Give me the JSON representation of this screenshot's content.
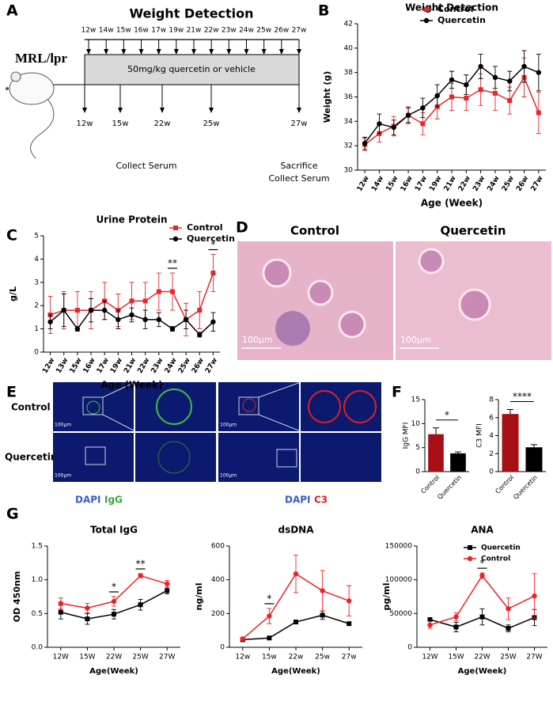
{
  "panel_labels": [
    "A",
    "B",
    "C",
    "D",
    "E",
    "F",
    "G"
  ],
  "schematic": {
    "title": "Weight Detection",
    "mouse": "MRL/lpr",
    "top_weeks": [
      "12w",
      "14w",
      "15w",
      "16w",
      "17w",
      "19w",
      "21w",
      "22w",
      "23w",
      "24w",
      "25w",
      "26w",
      "27w"
    ],
    "treatment": "50mg/kg quercetin or vehicle",
    "bottom_weeks": [
      "12w",
      "15w",
      "22w",
      "25w",
      "27w"
    ],
    "collect": "Collect Serum",
    "sacrifice": "Sacrifice",
    "sacrifice_collect": "Collect Serum"
  },
  "histology": {
    "columns": [
      "Control",
      "Quercetin"
    ],
    "scale_bars": [
      "100μm",
      "100μm"
    ]
  },
  "immunofluorescence": {
    "rows": [
      "Control",
      "Quercetin"
    ],
    "scale_bars": [
      "100μm",
      "100μm",
      "100μm",
      "100μm"
    ],
    "legend_left": [
      "DAPI",
      "IgG"
    ],
    "legend_right": [
      "DAPI",
      "C3"
    ]
  },
  "chart_data": [
    {
      "type": "line",
      "title": "Weight Detection",
      "xlabel": "Age (Week)",
      "ylabel": "Weight (g)",
      "categories": [
        "12w",
        "14w",
        "15w",
        "16w",
        "17w",
        "19w",
        "21w",
        "22w",
        "23w",
        "24w",
        "25w",
        "26w",
        "27w"
      ],
      "ylim": [
        30,
        42
      ],
      "yticks": [
        30,
        32,
        34,
        36,
        38,
        40,
        42
      ],
      "legend": "upper right",
      "series": [
        {
          "name": "Control",
          "color": "#e8262a",
          "marker": "square",
          "values": [
            32.1,
            33.0,
            33.6,
            34.5,
            33.8,
            35.2,
            36.0,
            35.9,
            36.6,
            36.3,
            35.7,
            37.6,
            34.7
          ],
          "errors": [
            0.5,
            0.7,
            0.8,
            0.7,
            0.9,
            1.0,
            1.1,
            1.0,
            1.3,
            1.4,
            1.1,
            1.6,
            1.7
          ]
        },
        {
          "name": "Quercetin",
          "color": "#000000",
          "marker": "circle",
          "values": [
            32.2,
            33.8,
            33.5,
            34.5,
            35.1,
            36.1,
            37.4,
            37.0,
            38.5,
            37.6,
            37.3,
            38.5,
            38.0
          ],
          "errors": [
            0.5,
            0.8,
            0.6,
            0.6,
            0.8,
            0.9,
            0.7,
            0.8,
            1.0,
            0.9,
            0.8,
            1.3,
            1.5
          ]
        }
      ]
    },
    {
      "type": "line",
      "title": "Urine Protein",
      "xlabel": "Age (Week)",
      "ylabel": "g/L",
      "categories": [
        "12w",
        "13w",
        "15w",
        "16w",
        "17w",
        "19w",
        "21w",
        "22w",
        "23w",
        "24w",
        "25w",
        "26w",
        "27w"
      ],
      "ylim": [
        0,
        5
      ],
      "yticks": [
        0,
        1,
        2,
        3,
        4,
        5
      ],
      "legend": "upper right",
      "significance": [
        null,
        null,
        null,
        null,
        null,
        null,
        null,
        null,
        null,
        "**",
        null,
        null,
        "*"
      ],
      "series": [
        {
          "name": "Control",
          "color": "#e8262a",
          "marker": "square",
          "values": [
            1.6,
            1.8,
            1.8,
            1.8,
            2.2,
            1.8,
            2.2,
            2.2,
            2.6,
            2.6,
            1.4,
            1.8,
            3.4
          ],
          "errors": [
            0.8,
            0.8,
            0.8,
            0.8,
            0.8,
            0.7,
            0.8,
            0.8,
            0.8,
            0.8,
            0.7,
            0.8,
            0.8
          ]
        },
        {
          "name": "Quercetin",
          "color": "#000000",
          "marker": "circle",
          "values": [
            1.3,
            1.8,
            1.0,
            1.8,
            1.8,
            1.4,
            1.6,
            1.4,
            1.4,
            1.0,
            1.4,
            0.75,
            1.3
          ],
          "errors": [
            0.3,
            0.7,
            0.1,
            0.5,
            0.4,
            0.4,
            0.3,
            0.4,
            0.3,
            0.1,
            0.4,
            0.1,
            0.4
          ]
        }
      ]
    },
    {
      "type": "bar",
      "ylabel": "IgG MFI",
      "categories": [
        "Control",
        "Quercetin"
      ],
      "values": [
        7.8,
        3.8
      ],
      "errors": [
        1.3,
        0.3
      ],
      "colors": [
        "#a50f15",
        "#000000"
      ],
      "ylim": [
        0,
        15
      ],
      "yticks": [
        0,
        5,
        10,
        15
      ],
      "significance": "*"
    },
    {
      "type": "bar",
      "ylabel": "C3 MFI",
      "categories": [
        "Control",
        "Quercetin"
      ],
      "values": [
        6.4,
        2.7
      ],
      "errors": [
        0.5,
        0.3
      ],
      "colors": [
        "#a50f15",
        "#000000"
      ],
      "ylim": [
        0,
        8
      ],
      "yticks": [
        0,
        2,
        4,
        6,
        8
      ],
      "significance": "****"
    },
    {
      "type": "line",
      "title": "Total IgG",
      "xlabel": "Age(Week)",
      "ylabel": "OD 450nm",
      "categories": [
        "12W",
        "15W",
        "22W",
        "25W",
        "27W"
      ],
      "ylim": [
        0,
        1.5
      ],
      "yticks": [
        {
          "value": 0,
          "label": "0.0"
        },
        0.5,
        {
          "value": 1,
          "label": "1.0"
        },
        1.5
      ],
      "significance": [
        null,
        null,
        "*",
        "**",
        null
      ],
      "series": [
        {
          "name": "Quercetin",
          "color": "#000000",
          "marker": "square",
          "values": [
            0.52,
            0.42,
            0.49,
            0.63,
            0.84
          ],
          "errors": [
            0.1,
            0.08,
            0.07,
            0.08,
            0.05
          ]
        },
        {
          "name": "Control",
          "color": "#ee2222",
          "marker": "circle",
          "values": [
            0.65,
            0.58,
            0.68,
            1.06,
            0.94
          ],
          "errors": [
            0.08,
            0.07,
            0.07,
            0.03,
            0.05
          ]
        }
      ]
    },
    {
      "type": "line",
      "title": "dsDNA",
      "xlabel": "Age(Week)",
      "ylabel": "ng/ml",
      "categories": [
        "12w",
        "15w",
        "22w",
        "25w",
        "27w"
      ],
      "ylim": [
        0,
        600
      ],
      "yticks": [
        0,
        200,
        400,
        600
      ],
      "significance": [
        null,
        "*",
        null,
        null,
        null
      ],
      "series": [
        {
          "name": "Quercetin",
          "color": "#000000",
          "marker": "square",
          "values": [
            45,
            55,
            150,
            190,
            140
          ],
          "errors": [
            5,
            8,
            10,
            25,
            10
          ]
        },
        {
          "name": "Control",
          "color": "#ee2222",
          "marker": "circle",
          "values": [
            50,
            185,
            435,
            335,
            275
          ],
          "errors": [
            8,
            45,
            110,
            120,
            90
          ]
        }
      ]
    },
    {
      "type": "line",
      "title": "ANA",
      "xlabel": "Age(Week)",
      "ylabel": "pg/ml",
      "categories": [
        "12W",
        "15W",
        "22W",
        "25W",
        "27W"
      ],
      "ylim": [
        0,
        150000
      ],
      "yticks": [
        0,
        50000,
        100000,
        150000
      ],
      "legend": "upper right",
      "significance": [
        null,
        null,
        "*",
        null,
        null
      ],
      "series": [
        {
          "name": "Quercetin",
          "color": "#000000",
          "marker": "square",
          "values": [
            41000,
            30000,
            45000,
            28000,
            44000
          ],
          "errors": [
            3000,
            7000,
            12000,
            5000,
            12000
          ]
        },
        {
          "name": "Control",
          "color": "#ee2222",
          "marker": "circle",
          "values": [
            33000,
            45000,
            106000,
            57000,
            76000
          ],
          "errors": [
            5000,
            6000,
            4000,
            16000,
            33000
          ]
        }
      ]
    }
  ]
}
